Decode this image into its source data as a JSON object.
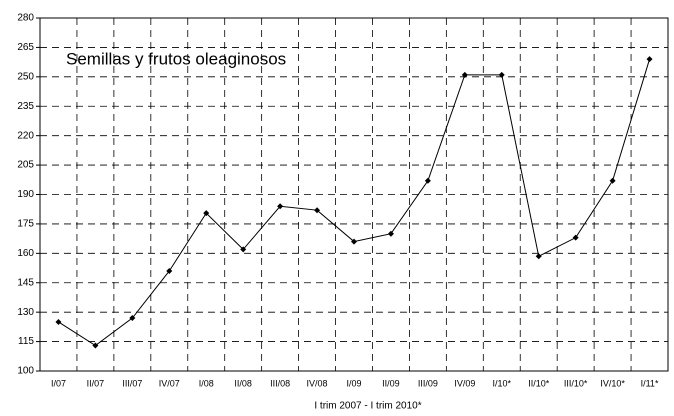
{
  "chart_data": {
    "type": "line",
    "title": "Semillas y frutos oleaginosos",
    "x_label": "I trim 2007 - I trim 2010*",
    "categories": [
      "I/07",
      "II/07",
      "III/07",
      "IV/07",
      "I/08",
      "II/08",
      "III/08",
      "IV/08",
      "I/09",
      "II/09",
      "III/09",
      "IV/09",
      "I/10*",
      "II/10*",
      "III/10*",
      "IV/10*",
      "I/11*"
    ],
    "series": [
      {
        "name": "Semillas y frutos oleaginosos",
        "color": "#000000",
        "values": [
          125,
          113,
          127,
          151,
          180.5,
          162,
          184,
          182,
          166,
          170,
          197,
          251,
          251,
          158.5,
          168,
          197,
          259
        ]
      }
    ],
    "ylim": [
      100,
      280
    ],
    "yticks": [
      100,
      115,
      130,
      145,
      160,
      175,
      190,
      205,
      220,
      235,
      250,
      265,
      280
    ],
    "grid": true
  }
}
